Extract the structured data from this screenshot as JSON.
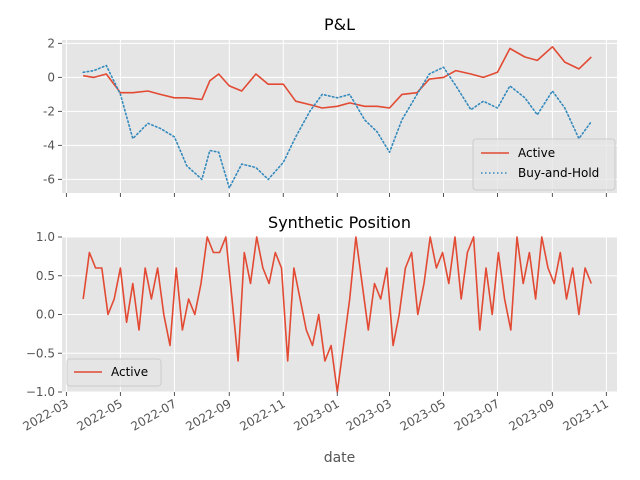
{
  "chart_data": [
    {
      "type": "line",
      "title": "P&L",
      "ylim": [
        -6.8,
        2.2
      ],
      "y_ticks": [
        2,
        0,
        -2,
        -4,
        -6
      ],
      "grid": true,
      "legend_position": "lower-right",
      "series": [
        {
          "name": "Active",
          "color": "#E24A33",
          "linestyle": "solid",
          "points": [
            [
              "2022-03-20",
              0.1
            ],
            [
              "2022-04-01",
              0.0
            ],
            [
              "2022-04-15",
              0.2
            ],
            [
              "2022-05-01",
              -0.9
            ],
            [
              "2022-05-15",
              -0.9
            ],
            [
              "2022-06-01",
              -0.8
            ],
            [
              "2022-06-15",
              -1.0
            ],
            [
              "2022-07-01",
              -1.2
            ],
            [
              "2022-07-15",
              -1.2
            ],
            [
              "2022-08-01",
              -1.3
            ],
            [
              "2022-08-10",
              -0.2
            ],
            [
              "2022-08-20",
              0.2
            ],
            [
              "2022-09-01",
              -0.5
            ],
            [
              "2022-09-15",
              -0.8
            ],
            [
              "2022-10-01",
              0.2
            ],
            [
              "2022-10-15",
              -0.4
            ],
            [
              "2022-11-01",
              -0.4
            ],
            [
              "2022-11-15",
              -1.4
            ],
            [
              "2022-12-01",
              -1.6
            ],
            [
              "2022-12-15",
              -1.8
            ],
            [
              "2023-01-01",
              -1.7
            ],
            [
              "2023-01-15",
              -1.5
            ],
            [
              "2023-02-01",
              -1.7
            ],
            [
              "2023-02-15",
              -1.7
            ],
            [
              "2023-03-01",
              -1.8
            ],
            [
              "2023-03-15",
              -1.0
            ],
            [
              "2023-04-01",
              -0.9
            ],
            [
              "2023-04-15",
              -0.1
            ],
            [
              "2023-05-01",
              0.0
            ],
            [
              "2023-05-15",
              0.4
            ],
            [
              "2023-06-01",
              0.2
            ],
            [
              "2023-06-15",
              0.0
            ],
            [
              "2023-07-01",
              0.3
            ],
            [
              "2023-07-15",
              1.7
            ],
            [
              "2023-08-01",
              1.2
            ],
            [
              "2023-08-15",
              1.0
            ],
            [
              "2023-09-01",
              1.8
            ],
            [
              "2023-09-15",
              0.9
            ],
            [
              "2023-10-01",
              0.5
            ],
            [
              "2023-10-15",
              1.2
            ]
          ]
        },
        {
          "name": "Buy-and-Hold",
          "color": "#348ABD",
          "linestyle": "dotted",
          "points": [
            [
              "2022-03-20",
              0.3
            ],
            [
              "2022-04-01",
              0.4
            ],
            [
              "2022-04-15",
              0.7
            ],
            [
              "2022-05-01",
              -1.0
            ],
            [
              "2022-05-15",
              -3.6
            ],
            [
              "2022-06-01",
              -2.7
            ],
            [
              "2022-06-15",
              -3.0
            ],
            [
              "2022-07-01",
              -3.5
            ],
            [
              "2022-07-15",
              -5.2
            ],
            [
              "2022-08-01",
              -6.0
            ],
            [
              "2022-08-10",
              -4.3
            ],
            [
              "2022-08-20",
              -4.4
            ],
            [
              "2022-09-01",
              -6.5
            ],
            [
              "2022-09-15",
              -5.1
            ],
            [
              "2022-10-01",
              -5.3
            ],
            [
              "2022-10-15",
              -6.0
            ],
            [
              "2022-11-01",
              -5.0
            ],
            [
              "2022-11-15",
              -3.5
            ],
            [
              "2022-12-01",
              -2.0
            ],
            [
              "2022-12-15",
              -1.0
            ],
            [
              "2023-01-01",
              -1.2
            ],
            [
              "2023-01-15",
              -1.0
            ],
            [
              "2023-02-01",
              -2.5
            ],
            [
              "2023-02-15",
              -3.2
            ],
            [
              "2023-03-01",
              -4.4
            ],
            [
              "2023-03-15",
              -2.5
            ],
            [
              "2023-04-01",
              -1.0
            ],
            [
              "2023-04-15",
              0.2
            ],
            [
              "2023-05-01",
              0.6
            ],
            [
              "2023-05-15",
              -0.5
            ],
            [
              "2023-06-01",
              -1.9
            ],
            [
              "2023-06-15",
              -1.4
            ],
            [
              "2023-07-01",
              -1.8
            ],
            [
              "2023-07-15",
              -0.5
            ],
            [
              "2023-08-01",
              -1.2
            ],
            [
              "2023-08-15",
              -2.2
            ],
            [
              "2023-09-01",
              -0.8
            ],
            [
              "2023-09-15",
              -1.8
            ],
            [
              "2023-10-01",
              -3.6
            ],
            [
              "2023-10-15",
              -2.6
            ]
          ]
        }
      ]
    },
    {
      "type": "line",
      "title": "Synthetic Position",
      "ylim": [
        -1.0,
        1.0
      ],
      "y_ticks": [
        "1.0",
        "0.5",
        "0.0",
        "−0.5",
        "−1.0"
      ],
      "y_tick_values": [
        1.0,
        0.5,
        0.0,
        -0.5,
        -1.0
      ],
      "grid": true,
      "legend_position": "lower-left",
      "series": [
        {
          "name": "Active",
          "color": "#E24A33",
          "linestyle": "solid",
          "points": [
            [
              "2022-03-20",
              0.2
            ],
            [
              "2022-03-27",
              0.8
            ],
            [
              "2022-04-03",
              0.6
            ],
            [
              "2022-04-10",
              0.6
            ],
            [
              "2022-04-17",
              0.0
            ],
            [
              "2022-04-24",
              0.2
            ],
            [
              "2022-05-01",
              0.6
            ],
            [
              "2022-05-08",
              -0.1
            ],
            [
              "2022-05-15",
              0.4
            ],
            [
              "2022-05-22",
              -0.2
            ],
            [
              "2022-05-29",
              0.6
            ],
            [
              "2022-06-05",
              0.2
            ],
            [
              "2022-06-12",
              0.6
            ],
            [
              "2022-06-19",
              0.0
            ],
            [
              "2022-06-26",
              -0.4
            ],
            [
              "2022-07-03",
              0.6
            ],
            [
              "2022-07-10",
              -0.2
            ],
            [
              "2022-07-17",
              0.2
            ],
            [
              "2022-07-24",
              0.0
            ],
            [
              "2022-07-31",
              0.4
            ],
            [
              "2022-08-07",
              1.0
            ],
            [
              "2022-08-14",
              0.8
            ],
            [
              "2022-08-21",
              0.8
            ],
            [
              "2022-08-28",
              1.0
            ],
            [
              "2022-09-04",
              0.2
            ],
            [
              "2022-09-11",
              -0.6
            ],
            [
              "2022-09-18",
              0.8
            ],
            [
              "2022-09-25",
              0.4
            ],
            [
              "2022-10-02",
              1.0
            ],
            [
              "2022-10-09",
              0.6
            ],
            [
              "2022-10-16",
              0.4
            ],
            [
              "2022-10-23",
              0.8
            ],
            [
              "2022-10-30",
              0.6
            ],
            [
              "2022-11-06",
              -0.6
            ],
            [
              "2022-11-13",
              0.6
            ],
            [
              "2022-11-20",
              0.2
            ],
            [
              "2022-11-27",
              -0.2
            ],
            [
              "2022-12-04",
              -0.4
            ],
            [
              "2022-12-11",
              0.0
            ],
            [
              "2022-12-18",
              -0.6
            ],
            [
              "2022-12-25",
              -0.4
            ],
            [
              "2023-01-01",
              -1.0
            ],
            [
              "2023-01-08",
              -0.4
            ],
            [
              "2023-01-15",
              0.2
            ],
            [
              "2023-01-22",
              1.0
            ],
            [
              "2023-01-29",
              0.4
            ],
            [
              "2023-02-05",
              -0.2
            ],
            [
              "2023-02-12",
              0.4
            ],
            [
              "2023-02-19",
              0.2
            ],
            [
              "2023-02-26",
              0.6
            ],
            [
              "2023-03-05",
              -0.4
            ],
            [
              "2023-03-12",
              0.0
            ],
            [
              "2023-03-19",
              0.6
            ],
            [
              "2023-03-26",
              0.8
            ],
            [
              "2023-04-02",
              0.0
            ],
            [
              "2023-04-09",
              0.4
            ],
            [
              "2023-04-16",
              1.0
            ],
            [
              "2023-04-23",
              0.6
            ],
            [
              "2023-04-30",
              0.8
            ],
            [
              "2023-05-07",
              0.4
            ],
            [
              "2023-05-14",
              1.0
            ],
            [
              "2023-05-21",
              0.2
            ],
            [
              "2023-05-28",
              0.8
            ],
            [
              "2023-06-04",
              1.0
            ],
            [
              "2023-06-11",
              -0.2
            ],
            [
              "2023-06-18",
              0.6
            ],
            [
              "2023-06-25",
              0.0
            ],
            [
              "2023-07-02",
              0.8
            ],
            [
              "2023-07-09",
              0.2
            ],
            [
              "2023-07-16",
              -0.2
            ],
            [
              "2023-07-23",
              1.0
            ],
            [
              "2023-07-30",
              0.4
            ],
            [
              "2023-08-06",
              0.8
            ],
            [
              "2023-08-13",
              0.2
            ],
            [
              "2023-08-20",
              1.0
            ],
            [
              "2023-08-27",
              0.6
            ],
            [
              "2023-09-03",
              0.4
            ],
            [
              "2023-09-10",
              0.8
            ],
            [
              "2023-09-17",
              0.2
            ],
            [
              "2023-09-24",
              0.6
            ],
            [
              "2023-10-01",
              0.0
            ],
            [
              "2023-10-08",
              0.6
            ],
            [
              "2023-10-15",
              0.4
            ]
          ]
        }
      ]
    }
  ],
  "x_ticks": [
    "2022-03",
    "2022-05",
    "2022-07",
    "2022-09",
    "2022-11",
    "2023-01",
    "2023-03",
    "2023-05",
    "2023-07",
    "2023-09",
    "2023-11"
  ],
  "xlabel": "date",
  "style": {
    "axes_bg": "#E5E5E5",
    "grid_color": "#FFFFFF",
    "tick_color": "#555555"
  }
}
